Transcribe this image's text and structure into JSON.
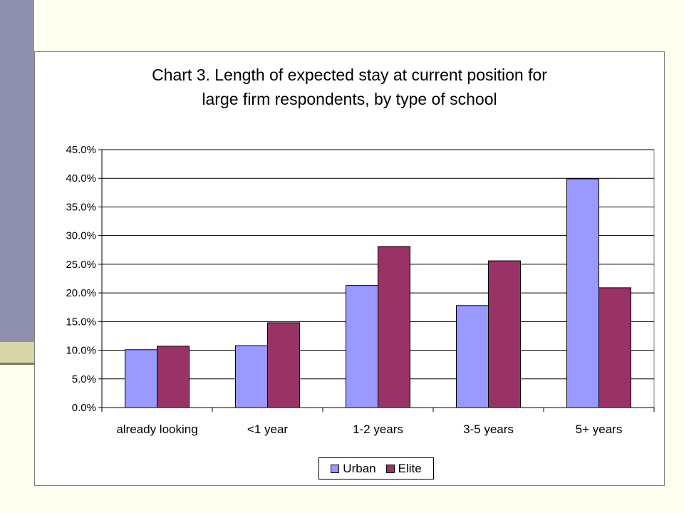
{
  "chart_data": {
    "type": "bar",
    "title_lines": [
      "Chart 3. Length of expected stay at current position for",
      "large firm respondents, by type of school"
    ],
    "categories": [
      "already looking",
      "<1 year",
      "1-2 years",
      "3-5 years",
      "5+ years"
    ],
    "series": [
      {
        "name": "Urban",
        "color": "#9999FF",
        "values": [
          10.1,
          10.8,
          21.3,
          17.8,
          39.9
        ]
      },
      {
        "name": "Elite",
        "color": "#993366",
        "values": [
          10.7,
          14.8,
          28.1,
          25.6,
          20.9
        ]
      }
    ],
    "yticks": [
      "0.0%",
      "5.0%",
      "10.0%",
      "15.0%",
      "20.0%",
      "25.0%",
      "30.0%",
      "35.0%",
      "40.0%",
      "45.0%"
    ],
    "ylim": [
      0,
      45
    ],
    "grid": true,
    "legend_position": "bottom"
  }
}
